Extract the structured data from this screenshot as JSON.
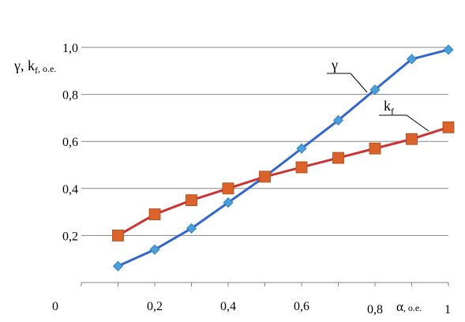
{
  "chart_data": {
    "type": "line",
    "title": "",
    "ylabel": {
      "main": "γ, k",
      "sub": "f",
      "unit": ", o.e."
    },
    "xlabel": {
      "main": "α",
      "unit": ", o.e."
    },
    "xlim": [
      0,
      1
    ],
    "ylim": [
      0,
      1.0
    ],
    "y_tick_labels": [
      "1,0",
      "0,8",
      "0,6",
      "0,4",
      "0,2"
    ],
    "y_tick_values": [
      1.0,
      0.8,
      0.6,
      0.4,
      0.2
    ],
    "x_tick_labels": [
      "0",
      "0,2",
      "0,4",
      "0,6",
      "0,8",
      "1"
    ],
    "x_tick_values": [
      0,
      0.2,
      0.4,
      0.6,
      0.8,
      1.0
    ],
    "grid": true,
    "x": [
      0.1,
      0.2,
      0.3,
      0.4,
      0.5,
      0.6,
      0.7,
      0.8,
      0.9,
      1.0
    ],
    "series": [
      {
        "name": "γ",
        "color": "#3366cc",
        "marker": "diamond",
        "marker_color": "#4a9fd8",
        "values": [
          0.07,
          0.14,
          0.23,
          0.34,
          0.45,
          0.57,
          0.69,
          0.82,
          0.95,
          0.99
        ]
      },
      {
        "name": "k",
        "name_sub": "f",
        "color": "#cc3333",
        "marker": "square",
        "marker_color": "#d9632a",
        "values": [
          0.2,
          0.29,
          0.35,
          0.4,
          0.45,
          0.49,
          0.53,
          0.57,
          0.61,
          0.66
        ]
      }
    ]
  }
}
